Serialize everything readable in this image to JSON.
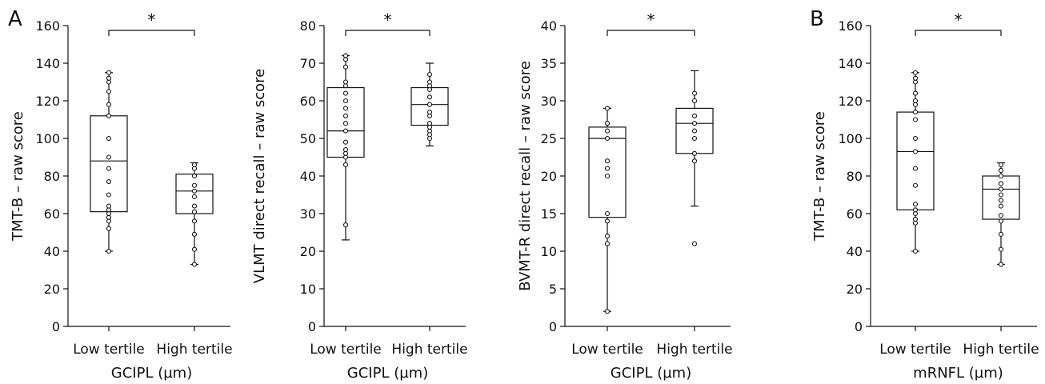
{
  "figure": {
    "panel_letters": [
      "A",
      "B"
    ]
  },
  "chart_data": [
    {
      "type": "box",
      "panel_letter": "A",
      "title": "",
      "ylabel": "TMT-B – raw score",
      "xlabel": "GCIPL (µm)",
      "ylim": [
        0,
        160
      ],
      "yticks": [
        0,
        20,
        40,
        60,
        80,
        100,
        120,
        140,
        160
      ],
      "categories": [
        "Low tertile",
        "High tertile"
      ],
      "significance": "*",
      "boxes": [
        {
          "whisker_low": 40,
          "q1": 61,
          "median": 88,
          "q3": 112,
          "whisker_high": 135,
          "points": [
            40,
            52,
            56,
            58,
            60,
            62,
            64,
            70,
            77,
            84,
            90,
            100,
            112,
            118,
            125,
            130,
            132,
            135
          ]
        },
        {
          "whisker_low": 33,
          "q1": 60,
          "median": 72,
          "q3": 81,
          "whisker_high": 87,
          "points": [
            33,
            41,
            49,
            56,
            61,
            64,
            69,
            72,
            75,
            80,
            84,
            86
          ]
        }
      ]
    },
    {
      "type": "box",
      "panel_letter": "",
      "title": "",
      "ylabel": "VLMT direct recall – raw score",
      "xlabel": "GCIPL (µm)",
      "ylim": [
        0,
        80
      ],
      "yticks": [
        0,
        10,
        20,
        30,
        40,
        50,
        60,
        70,
        80
      ],
      "categories": [
        "Low tertile",
        "High tertile"
      ],
      "significance": "*",
      "boxes": [
        {
          "whisker_low": 23,
          "q1": 45,
          "median": 52,
          "q3": 63.5,
          "whisker_high": 72,
          "points": [
            27,
            43,
            45,
            46,
            47,
            49,
            52,
            54,
            56,
            58,
            60,
            62,
            64,
            65,
            69,
            71,
            72
          ]
        },
        {
          "whisker_low": 48,
          "q1": 53.5,
          "median": 59,
          "q3": 63.5,
          "whisker_high": 70,
          "points": [
            50,
            51,
            52,
            53,
            54,
            56,
            57,
            59,
            61,
            63,
            64,
            65,
            67
          ]
        }
      ]
    },
    {
      "type": "box",
      "panel_letter": "",
      "title": "",
      "ylabel": "BVMT-R direct recall – raw score",
      "xlabel": "GCIPL (µm)",
      "ylim": [
        0,
        40
      ],
      "yticks": [
        0,
        5,
        10,
        15,
        20,
        25,
        30,
        35,
        40
      ],
      "categories": [
        "Low tertile",
        "High tertile"
      ],
      "significance": "*",
      "boxes": [
        {
          "whisker_low": 2,
          "q1": 14.5,
          "median": 25,
          "q3": 26.5,
          "whisker_high": 29,
          "points": [
            2,
            11,
            12,
            14,
            15,
            20,
            21,
            22,
            25,
            26,
            27,
            29
          ]
        },
        {
          "whisker_low": 16,
          "q1": 23,
          "median": 27,
          "q3": 29,
          "whisker_high": 34,
          "points": [
            11,
            22,
            23,
            25,
            26,
            27,
            28,
            30,
            31
          ]
        }
      ]
    },
    {
      "type": "box",
      "panel_letter": "B",
      "title": "",
      "ylabel": "TMT-B – raw score",
      "xlabel": "mRNFL (µm)",
      "ylim": [
        0,
        160
      ],
      "yticks": [
        0,
        20,
        40,
        60,
        80,
        100,
        120,
        140,
        160
      ],
      "categories": [
        "Low tertile",
        "High tertile"
      ],
      "significance": "*",
      "boxes": [
        {
          "whisker_low": 40,
          "q1": 62,
          "median": 93,
          "q3": 114,
          "whisker_high": 135,
          "points": [
            40,
            55,
            57,
            60,
            62,
            65,
            75,
            84,
            93,
            100,
            110,
            114,
            118,
            120,
            124,
            130,
            132,
            135
          ]
        },
        {
          "whisker_low": 33,
          "q1": 57,
          "median": 73,
          "q3": 80,
          "whisker_high": 87,
          "points": [
            33,
            41,
            49,
            56,
            59,
            64,
            67,
            70,
            73,
            76,
            80,
            83,
            86
          ]
        }
      ]
    }
  ]
}
